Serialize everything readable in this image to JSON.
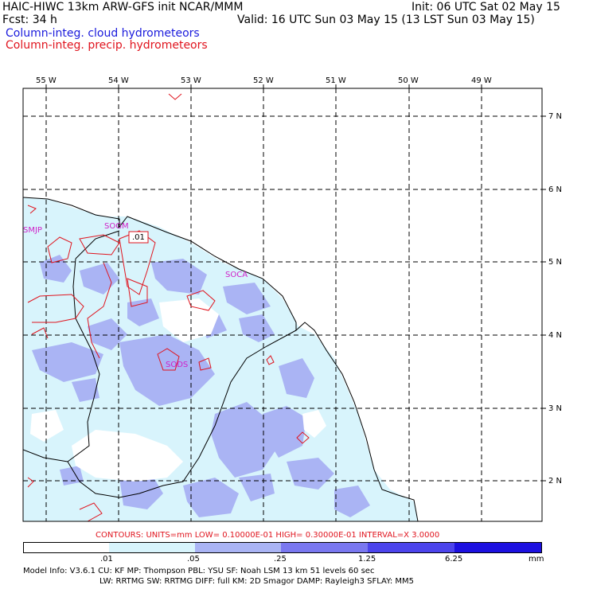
{
  "header": {
    "model": "HAIC-HIWC 13km ARW-GFS init   NCAR/MMM",
    "init": "Init: 06 UTC Sat 02 May 15",
    "fcst_label": "Fcst:   34 h",
    "valid": "Valid: 16 UTC Sun 03 May 15 (13 LST Sun 03 May 15)",
    "field1": "Column-integ. cloud hydrometeors",
    "field2": "Column-integ. precip. hydrometeors"
  },
  "map": {
    "lon_labels": [
      "55 W",
      "54 W",
      "53 W",
      "52 W",
      "51 W",
      "50 W",
      "49 W"
    ],
    "lat_labels": [
      "7 N",
      "6 N",
      "5 N",
      "4 N",
      "3 N",
      "2 N"
    ],
    "stations": [
      "SMJP",
      "SOGM",
      "SOCA",
      "SODS"
    ],
    "contour_label": ".01"
  },
  "contours_line": "CONTOURS:  UNITS=mm  LOW= 0.10000E-01  HIGH= 0.30000E-01  INTERVAL=X  3.0000",
  "colorbar": {
    "ticks": [
      ".01",
      ".05",
      ".25",
      "1.25",
      "6.25"
    ],
    "unit": "mm",
    "colors": [
      "#ffffff",
      "#d8f4fc",
      "#aab4f4",
      "#7a78f0",
      "#4c44ec",
      "#1c10e0"
    ]
  },
  "footer": {
    "line1": "Model Info: V3.6.1    CU: KF     MP: Thompson     PBL: YSU      SF: Noah LSM     13 km   51 levels   60 sec",
    "line2": "LW: RRTMG    SW: RRTMG   DIFF: full    KM: 2D Smagor DAMP: Rayleigh3  SFLAY: MM5"
  }
}
